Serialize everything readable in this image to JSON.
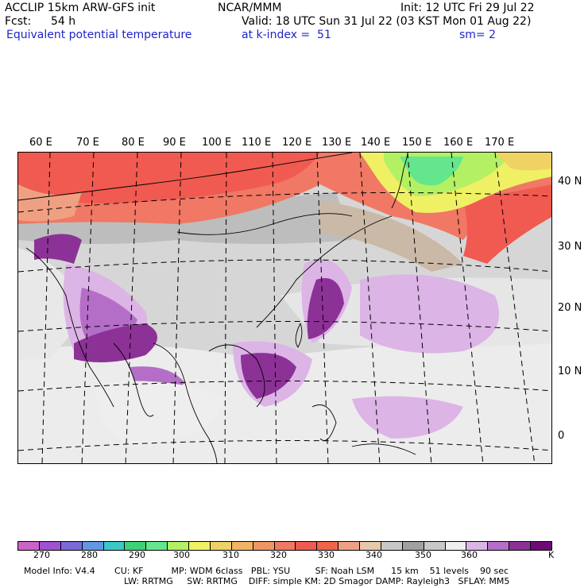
{
  "header": {
    "left_line1": "ACCLIP 15km ARW-GFS init",
    "center_line1": "NCAR/MMM",
    "right_line1": "Init: 12 UTC Fri 29 Jul 22",
    "fcst_label": "Fcst:",
    "fcst_value": "54 h",
    "valid": "Valid: 18 UTC Sun 31 Jul 22 (03 KST Mon 01 Aug 22)",
    "field_name": "Equivalent potential temperature",
    "level": "at k-index =  51",
    "smoothing": "sm= 2"
  },
  "map": {
    "lon_labels": [
      "60 E",
      "70 E",
      "80 E",
      "90 E",
      "100 E",
      "110 E",
      "120 E",
      "130 E",
      "140 E",
      "150 E",
      "160 E",
      "170 E"
    ],
    "lat_labels": [
      "40 N",
      "30 N",
      "20 N",
      "10 N",
      "0"
    ]
  },
  "colorbar": {
    "colors": [
      "#c864c8",
      "#a050d2",
      "#7a6ad8",
      "#6496e6",
      "#3cc8c8",
      "#3cd278",
      "#64e68c",
      "#b4f064",
      "#f0f064",
      "#f0d264",
      "#f0b464",
      "#f09664",
      "#f07864",
      "#f05a50",
      "#f0644a",
      "#f0a082",
      "#e6c8aa",
      "#c8c8c8",
      "#a0a0a0",
      "#c8c8c8",
      "#eeeeee",
      "#dcb4e6",
      "#b46ec8",
      "#8c3296",
      "#6e0a78"
    ],
    "tick_labels": [
      "270",
      "280",
      "290",
      "300",
      "310",
      "320",
      "330",
      "340",
      "350",
      "360"
    ],
    "unit": "K"
  },
  "footer": {
    "line1": "Model Info: V4.4       CU: KF          MP: WDM 6class   PBL: YSU         SF: Noah LSM      15 km    51 levels    90 sec",
    "line2": "LW: RRTMG     SW: RRTMG    DIFF: simple KM: 2D Smagor DAMP: Rayleigh3   SFLAY: MM5"
  }
}
